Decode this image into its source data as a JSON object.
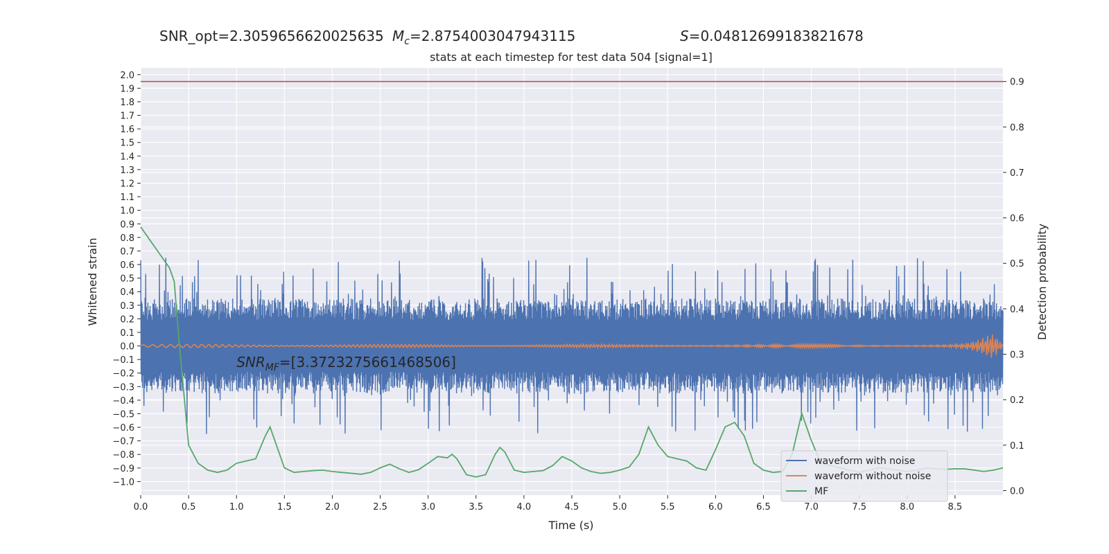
{
  "chart_data": {
    "type": "line",
    "header": {
      "snr_opt": "SNR_opt=2.3059656620025635",
      "mc_symbol": "M",
      "mc_sub": "c",
      "mc_value": "=2.8754003047943115",
      "s_symbol": "S",
      "s_value": "=0.04812699183821678"
    },
    "title": "stats at each timestep for test data 504 [signal=1]",
    "xlabel": "Time (s)",
    "ylabel_left": "Whitened strain",
    "ylabel_right": "Detection probability",
    "xlim": [
      0.0,
      9.0
    ],
    "ylim_left": [
      -1.1,
      2.05
    ],
    "ylim_right": [
      -0.01,
      0.93
    ],
    "x_ticks": [
      0.0,
      0.5,
      1.0,
      1.5,
      2.0,
      2.5,
      3.0,
      3.5,
      4.0,
      4.5,
      5.0,
      5.5,
      6.0,
      6.5,
      7.0,
      7.5,
      8.0,
      8.5
    ],
    "x_tick_labels": [
      "0.0",
      "0.5",
      "1.0",
      "1.5",
      "2.0",
      "2.5",
      "3.0",
      "3.5",
      "4.0",
      "4.5",
      "5.0",
      "5.5",
      "6.0",
      "6.5",
      "7.0",
      "7.5",
      "8.0",
      "8.5"
    ],
    "left_ticks": [
      2.0,
      1.9,
      1.8,
      1.7,
      1.6,
      1.5,
      1.4,
      1.3,
      1.2,
      1.1,
      1.0,
      0.9,
      0.8,
      0.7,
      0.6,
      0.5,
      0.4,
      0.3,
      0.2,
      0.1,
      0.0,
      -0.1,
      -0.2,
      -0.3,
      -0.4,
      -0.5,
      -0.6,
      -0.7,
      -0.8,
      -0.9,
      -1.0
    ],
    "left_tick_labels": [
      "2.0",
      "1.9",
      "1.8",
      "1.7",
      "1.6",
      "1.5",
      "1.4",
      "1.3",
      "1.2",
      "1.1",
      "1.0",
      "0.9",
      "0.8",
      "0.7",
      "0.6",
      "0.5",
      "0.4",
      "0.3",
      "0.2",
      "0.1",
      "0.0",
      "−0.1",
      "−0.2",
      "−0.3",
      "−0.4",
      "−0.5",
      "−0.6",
      "−0.7",
      "−0.8",
      "−0.9",
      "−1.0"
    ],
    "right_ticks": [
      0.9,
      0.8,
      0.7,
      0.6,
      0.5,
      0.4,
      0.3,
      0.2,
      0.1,
      0.0
    ],
    "right_tick_labels": [
      "0.9",
      "0.8",
      "0.7",
      "0.6",
      "0.5",
      "0.4",
      "0.3",
      "0.2",
      "0.1",
      "0.0"
    ],
    "threshold": 0.9,
    "annotation": {
      "symbol": "SNR",
      "sub": "MF",
      "value": "=[3.3723275661468506]",
      "x": 1.0,
      "y": -0.12
    },
    "series": [
      {
        "name": "waveform with noise",
        "color": "#4c72b0",
        "axis": "left",
        "amplitude_typical": 0.35,
        "amplitude_max": 0.65,
        "x_range": [
          0.0,
          9.0
        ]
      },
      {
        "name": "waveform without noise",
        "color": "#dd8452",
        "axis": "left",
        "x_range": [
          0.0,
          9.0
        ]
      },
      {
        "name": "MF",
        "color": "#55a868",
        "axis": "right",
        "x": [
          0.0,
          0.1,
          0.2,
          0.3,
          0.35,
          0.4,
          0.5,
          0.6,
          0.7,
          0.8,
          0.9,
          1.0,
          1.1,
          1.2,
          1.3,
          1.35,
          1.4,
          1.5,
          1.6,
          1.7,
          1.8,
          1.9,
          2.0,
          2.1,
          2.2,
          2.3,
          2.4,
          2.5,
          2.6,
          2.7,
          2.8,
          2.9,
          3.0,
          3.1,
          3.2,
          3.25,
          3.3,
          3.4,
          3.5,
          3.6,
          3.7,
          3.75,
          3.8,
          3.9,
          4.0,
          4.1,
          4.2,
          4.3,
          4.4,
          4.5,
          4.6,
          4.7,
          4.8,
          4.9,
          5.0,
          5.1,
          5.2,
          5.3,
          5.4,
          5.5,
          5.6,
          5.7,
          5.8,
          5.9,
          6.0,
          6.1,
          6.2,
          6.3,
          6.4,
          6.5,
          6.6,
          6.7,
          6.8,
          6.9,
          7.0,
          7.1,
          7.2,
          7.3,
          7.4,
          7.5,
          7.6,
          7.7,
          7.8,
          7.9,
          8.0,
          8.1,
          8.2,
          8.3,
          8.4,
          8.5,
          8.6,
          8.7,
          8.8,
          8.9,
          9.0
        ],
        "y": [
          0.58,
          0.55,
          0.52,
          0.49,
          0.46,
          0.33,
          0.1,
          0.06,
          0.045,
          0.04,
          0.045,
          0.06,
          0.065,
          0.07,
          0.12,
          0.14,
          0.11,
          0.05,
          0.04,
          0.042,
          0.044,
          0.045,
          0.042,
          0.04,
          0.038,
          0.036,
          0.04,
          0.05,
          0.058,
          0.048,
          0.04,
          0.046,
          0.06,
          0.075,
          0.072,
          0.08,
          0.07,
          0.035,
          0.03,
          0.035,
          0.08,
          0.095,
          0.085,
          0.045,
          0.04,
          0.042,
          0.044,
          0.055,
          0.075,
          0.065,
          0.05,
          0.042,
          0.038,
          0.04,
          0.045,
          0.052,
          0.08,
          0.14,
          0.1,
          0.075,
          0.07,
          0.065,
          0.05,
          0.045,
          0.09,
          0.14,
          0.15,
          0.12,
          0.06,
          0.045,
          0.04,
          0.042,
          0.08,
          0.17,
          0.11,
          0.06,
          0.055,
          0.05,
          0.045,
          0.04,
          0.045,
          0.05,
          0.048,
          0.045,
          0.042,
          0.045,
          0.05,
          0.048,
          0.047,
          0.048,
          0.048,
          0.045,
          0.042,
          0.045,
          0.05
        ]
      }
    ],
    "legend_position": "lower-right",
    "grid": true
  }
}
